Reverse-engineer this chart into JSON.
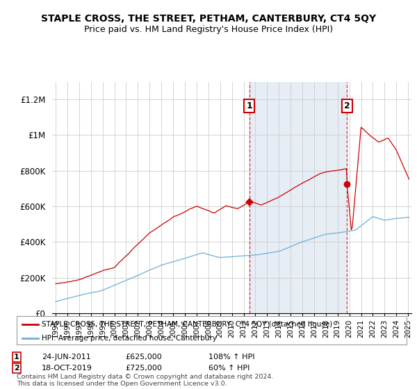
{
  "title": "STAPLE CROSS, THE STREET, PETHAM, CANTERBURY, CT4 5QY",
  "subtitle": "Price paid vs. HM Land Registry's House Price Index (HPI)",
  "legend_line1": "STAPLE CROSS, THE STREET, PETHAM, CANTERBURY, CT4 5QY (detached house)",
  "legend_line2": "HPI: Average price, detached house, Canterbury",
  "annotation1_label": "1",
  "annotation1_date": "24-JUN-2011",
  "annotation1_price": "£625,000",
  "annotation1_hpi": "108% ↑ HPI",
  "annotation1_year": 2011.5,
  "annotation1_value": 625000,
  "annotation2_label": "2",
  "annotation2_date": "18-OCT-2019",
  "annotation2_price": "£725,000",
  "annotation2_hpi": "60% ↑ HPI",
  "annotation2_year": 2019.8,
  "annotation2_value": 725000,
  "red_color": "#cc0000",
  "blue_color": "#6baed6",
  "shade_color": "#dce6f1",
  "grid_color": "#cccccc",
  "footer": "Contains HM Land Registry data © Crown copyright and database right 2024.\nThis data is licensed under the Open Government Licence v3.0.",
  "ylim": [
    0,
    1300000
  ],
  "xlim_start": 1994.7,
  "xlim_end": 2025.3
}
